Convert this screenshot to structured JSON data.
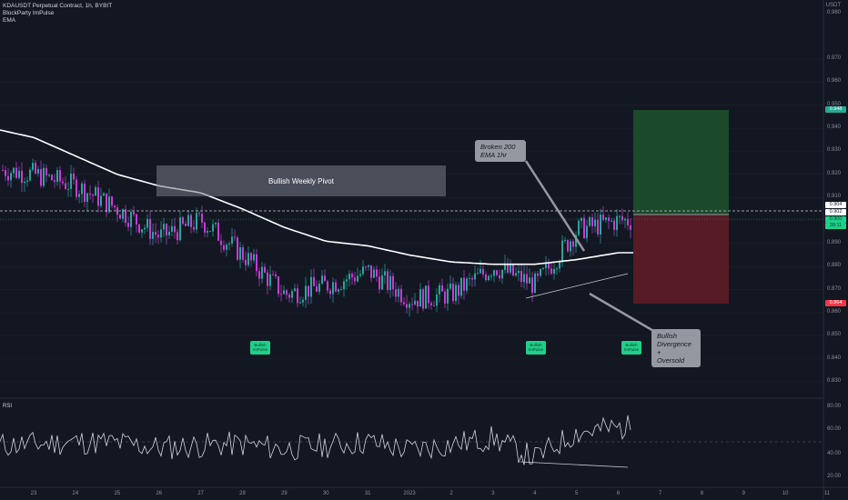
{
  "header": {
    "title": "KDAUSDT Perpetual Contract, 1h, BYBIT",
    "indicator1": "BlockParty ImPulse",
    "indicator2": "EMA"
  },
  "price_axis": {
    "currency": "USDT",
    "labels": [
      "0.970",
      "0.960",
      "0.950",
      "0.940",
      "0.930",
      "0.920",
      "0.910",
      "0.900",
      "0.890",
      "0.880",
      "0.870",
      "0.860",
      "0.850",
      "0.840",
      "0.830"
    ],
    "top_label": "0.980"
  },
  "price_tags": {
    "target": {
      "text": "0.948",
      "color": "#22ab94"
    },
    "current": {
      "text": "0.904",
      "color": "#ffffff"
    },
    "ref": {
      "text": "0.902",
      "color": "#ffffff"
    },
    "close": {
      "text": "0.900",
      "color": "#1fd08a"
    },
    "countdown": {
      "text": "39:11"
    },
    "stop": {
      "text": "0.864",
      "color": "#f23645"
    }
  },
  "time_axis": [
    "23",
    "24",
    "25",
    "26",
    "27",
    "28",
    "29",
    "30",
    "31",
    "2023",
    "2",
    "3",
    "4",
    "5",
    "6",
    "7",
    "8",
    "9",
    "10",
    "11"
  ],
  "rsi": {
    "title": "RSI",
    "labels": [
      "80.00",
      "60.00",
      "40.00",
      "20.00"
    ]
  },
  "annotations": {
    "pivot_label": "Bullish Weekly Pivot",
    "note_ema": "Broken 200\nEMA 1hr",
    "note_div": "Bullish\nDivergence +\nOversold"
  },
  "badges": [
    "Bullish\nImPulse",
    "Bullish\nImPulse",
    "Bullish\nImPulse"
  ],
  "colors": {
    "background": "#131722",
    "up_candle": "#26a69a",
    "down_candle": "#c73bd6",
    "ema": "#ffffff",
    "target_zone": "#1b4d2b",
    "stop_zone": "#5a1b25",
    "badge": "#1fd08a"
  },
  "chart_data": {
    "type": "candlestick",
    "symbol": "KDAUSDT",
    "timeframe": "1h",
    "ylim": [
      0.825,
      0.985
    ],
    "x": [
      "23",
      "24",
      "25",
      "26",
      "27",
      "28",
      "29",
      "30",
      "31",
      "2023",
      "2",
      "3",
      "4",
      "5",
      "6"
    ],
    "close": [
      0.92,
      0.915,
      0.905,
      0.893,
      0.9,
      0.885,
      0.868,
      0.872,
      0.878,
      0.866,
      0.868,
      0.88,
      0.872,
      0.896,
      0.9
    ],
    "series": [
      {
        "name": "EMA",
        "values": [
          0.936,
          0.928,
          0.92,
          0.915,
          0.912,
          0.905,
          0.897,
          0.891,
          0.889,
          0.885,
          0.882,
          0.881,
          0.881,
          0.883,
          0.886
        ]
      },
      {
        "name": "RSI",
        "values": [
          48,
          50,
          49,
          45,
          47,
          48,
          44,
          47,
          50,
          43,
          48,
          53,
          36,
          58,
          62
        ]
      }
    ],
    "position": {
      "entry": 0.902,
      "target": 0.948,
      "stop": 0.864
    }
  }
}
